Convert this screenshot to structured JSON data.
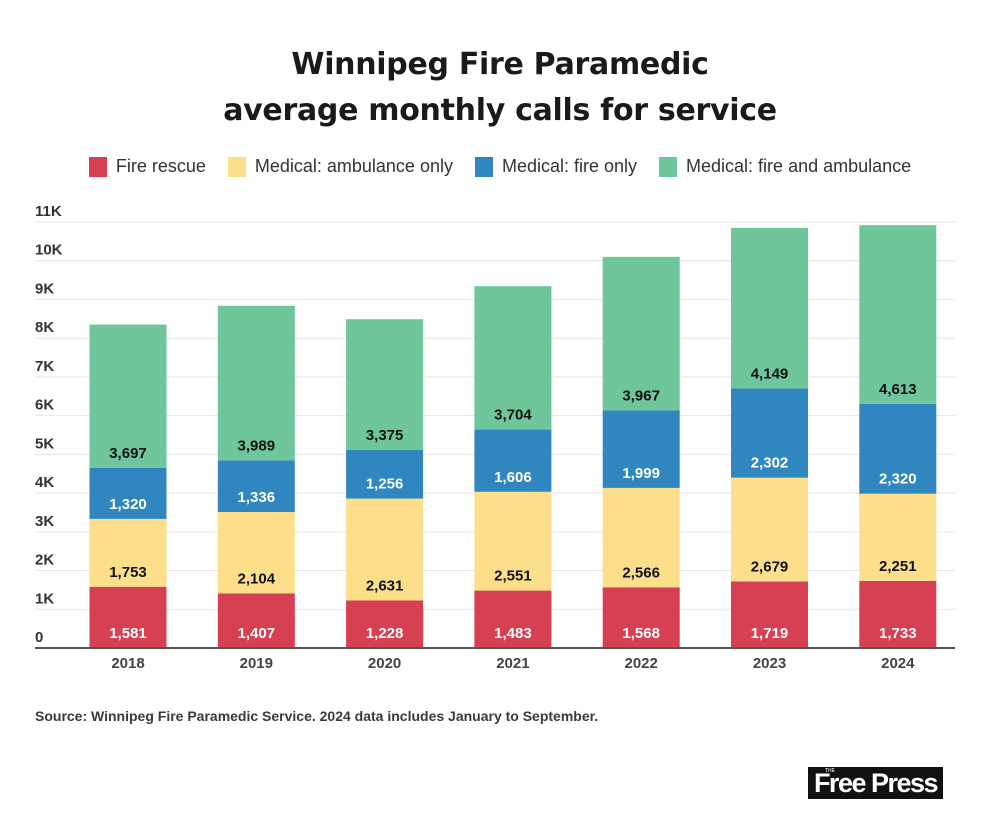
{
  "title_lines": [
    "Winnipeg Fire Paramedic",
    "average monthly calls for service"
  ],
  "source": "Source: Winnipeg Fire Paramedic Service. 2024 data includes January to September.",
  "logo": {
    "small": "THE",
    "main": "Free Press"
  },
  "chart_data": {
    "type": "bar",
    "stacked": true,
    "title": "Winnipeg Fire Paramedic average monthly calls for service",
    "xlabel": "",
    "ylabel": "",
    "categories": [
      "2018",
      "2019",
      "2020",
      "2021",
      "2022",
      "2023",
      "2024"
    ],
    "series": [
      {
        "name": "Fire rescue",
        "color": "#d73f52",
        "label_color": "#ffffff",
        "values": [
          1581,
          1407,
          1228,
          1483,
          1568,
          1719,
          1733
        ]
      },
      {
        "name": "Medical: ambulance only",
        "color": "#fddf8b",
        "label_color": "#111111",
        "values": [
          1753,
          2104,
          2631,
          2551,
          2566,
          2679,
          2251
        ]
      },
      {
        "name": "Medical: fire only",
        "color": "#3087bf",
        "label_color": "#ffffff",
        "values": [
          1320,
          1336,
          1256,
          1606,
          1999,
          2302,
          2320
        ]
      },
      {
        "name": "Medical: fire and ambulance",
        "color": "#6fc69a",
        "label_color": "#111111",
        "values": [
          3697,
          3989,
          3375,
          3704,
          3967,
          4149,
          4613
        ]
      }
    ],
    "ylim": [
      0,
      11000
    ],
    "yticks": [
      0,
      1000,
      2000,
      3000,
      4000,
      5000,
      6000,
      7000,
      8000,
      9000,
      10000,
      11000
    ],
    "ytick_labels": [
      "0",
      "1K",
      "2K",
      "3K",
      "4K",
      "5K",
      "6K",
      "7K",
      "8K",
      "9K",
      "10K",
      "11K"
    ],
    "grid": true,
    "legend_position": "top-center"
  }
}
